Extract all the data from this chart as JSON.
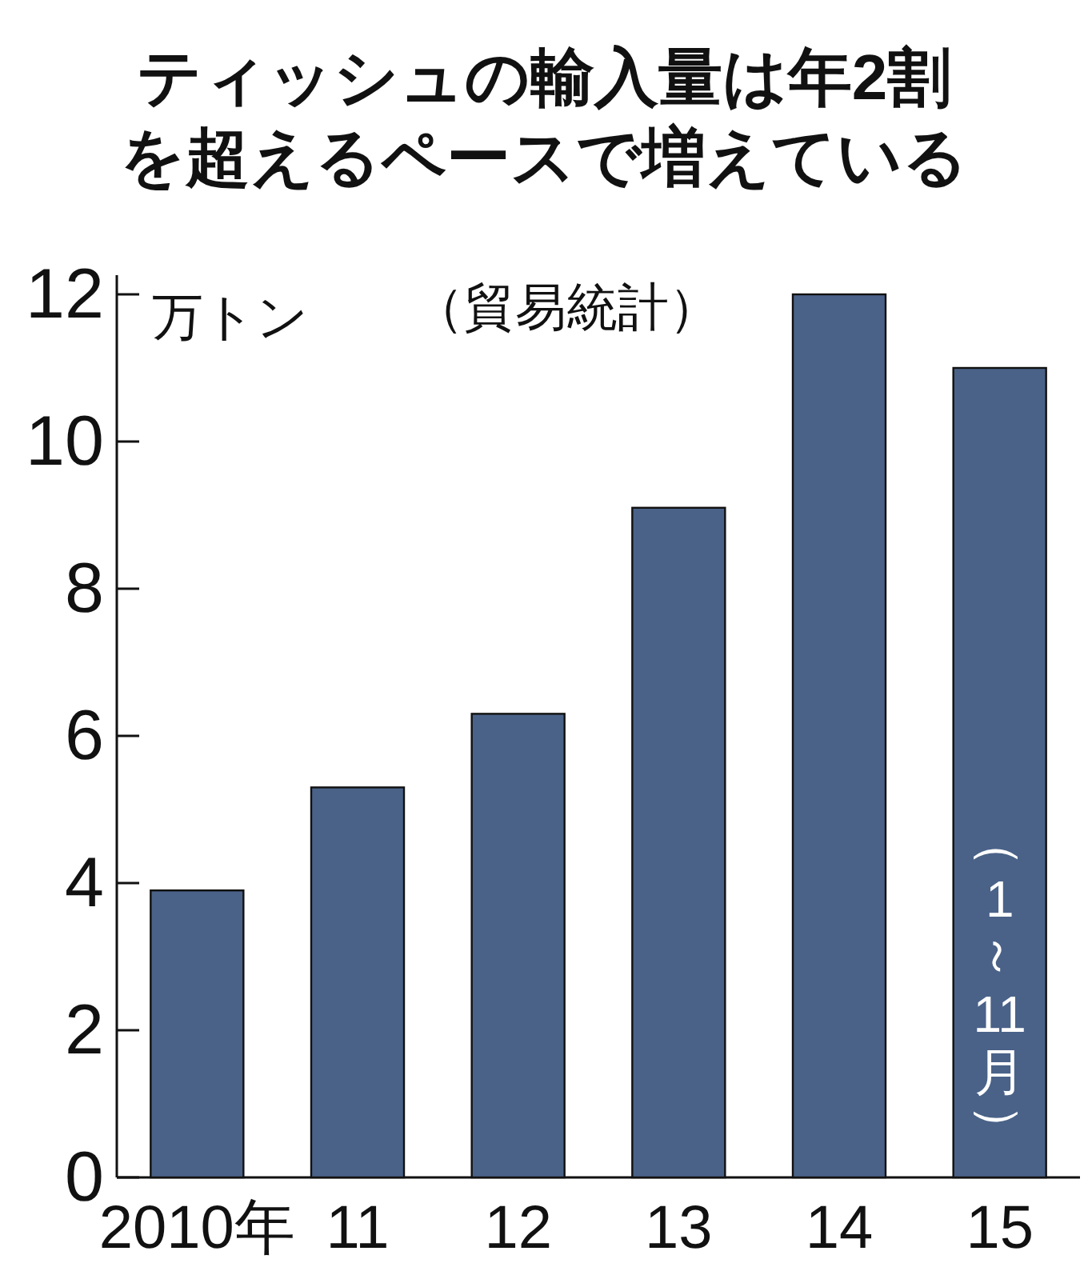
{
  "chart_data": {
    "type": "bar",
    "title": "ティッシュの輸入量は年2割を超えるペースで増えている",
    "subtitle": "（貿易統計）",
    "ylabel": "万トン",
    "categories": [
      "2010年",
      "11",
      "12",
      "13",
      "14",
      "15"
    ],
    "values": [
      3.9,
      5.3,
      6.3,
      9.1,
      12.0,
      11.0
    ],
    "color": "#4a6288",
    "ylim": [
      0,
      12
    ],
    "yticks": [
      0,
      2,
      4,
      6,
      8,
      10,
      12
    ],
    "grid": false,
    "annotations": [
      "（1～11月）"
    ]
  }
}
